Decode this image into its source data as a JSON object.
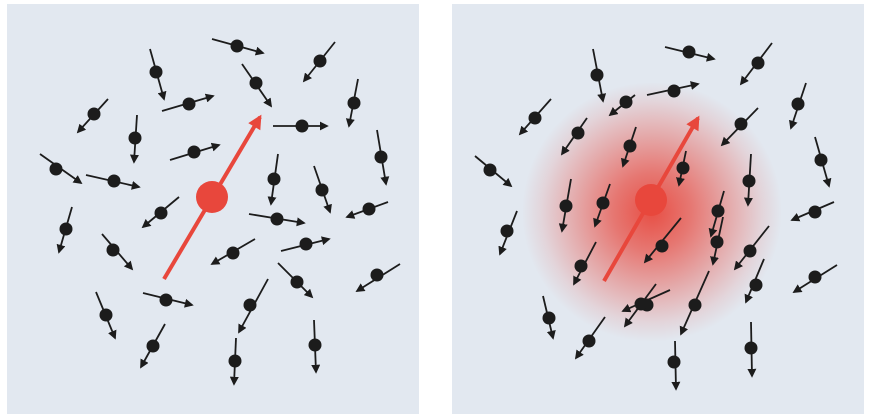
{
  "colors": {
    "background": "#e2e8f0",
    "spin": "#1c1c1c",
    "magnetic_moment": "#e8473c",
    "polarization_cloud": "#e8473c"
  },
  "panels": [
    {
      "id": "left",
      "polarization_cloud": false,
      "icons": [
        "central-magnetic-moment-arrow",
        "spin-arrow"
      ]
    },
    {
      "id": "right",
      "polarization_cloud": true,
      "icons": [
        "central-magnetic-moment-arrow",
        "spin-arrow",
        "polarization-cloud"
      ]
    }
  ]
}
